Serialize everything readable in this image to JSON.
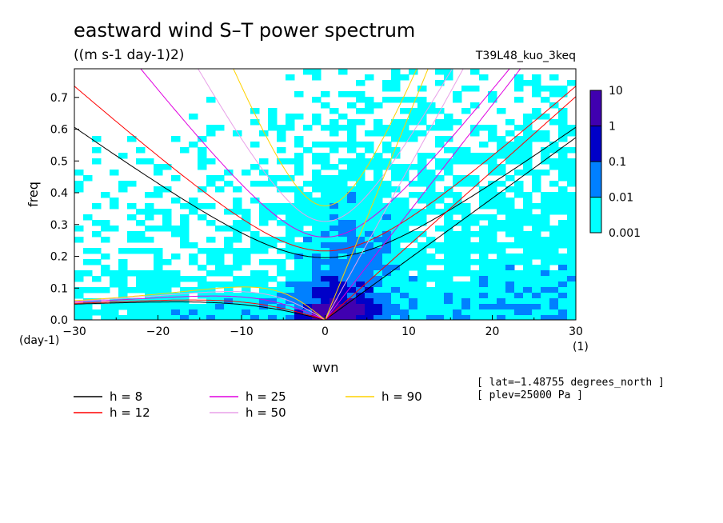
{
  "chart_data": {
    "type": "heatmap",
    "title": "eastward wind S–T power spectrum",
    "units": "((m s-1 day-1)2)",
    "experiment": "T39L48_kuo_3keq",
    "xlabel": "wvn",
    "ylabel": "freq",
    "x_unit": "(1)",
    "y_unit": "(day-1)",
    "xlim": [
      -30,
      30
    ],
    "ylim": [
      0.0,
      0.79
    ],
    "x_ticks": [
      "−30",
      "−20",
      "−10",
      "0",
      "10",
      "20",
      "30"
    ],
    "x_tick_values": [
      -30,
      -20,
      -10,
      0,
      10,
      20,
      30
    ],
    "y_ticks": [
      "0.0",
      "0.1",
      "0.2",
      "0.3",
      "0.4",
      "0.5",
      "0.6",
      "0.7"
    ],
    "y_tick_values": [
      0.0,
      0.1,
      0.2,
      0.3,
      0.4,
      0.5,
      0.6,
      0.7
    ],
    "colorbar": {
      "levels": [
        0.001,
        0.01,
        0.1,
        1,
        10
      ],
      "labels": [
        "0.001",
        "0.01",
        "0.1",
        "1",
        "10"
      ],
      "colors": [
        "#00ffff",
        "#0080ff",
        "#0000c8",
        "#4000b0"
      ],
      "scale": "log"
    },
    "dispersion_curves": [
      {
        "label": "h =  8",
        "h": 8,
        "color": "#000000"
      },
      {
        "label": "h = 12",
        "h": 12,
        "color": "#ff0000"
      },
      {
        "label": "h = 25",
        "h": 25,
        "color": "#e000e0"
      },
      {
        "label": "h = 50",
        "h": 50,
        "color": "#e8a0e8"
      },
      {
        "label": "h = 90",
        "h": 90,
        "color": "#ffd200"
      }
    ],
    "annotations": [
      "[ lat=−1.48755 degrees_north ]",
      "[ plev=25000 Pa ]"
    ],
    "grid": false,
    "legend_position": "bottom"
  }
}
